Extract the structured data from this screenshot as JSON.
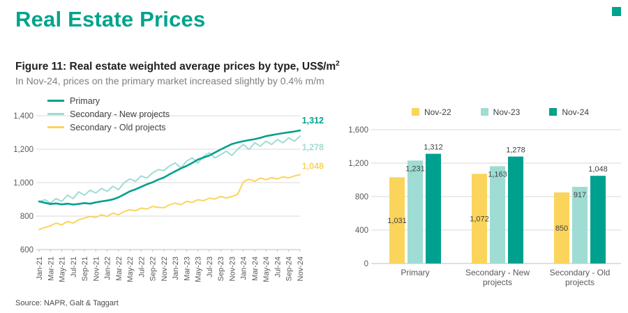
{
  "page": {
    "title": "Real Estate Prices",
    "figure_label": "Figure 11: Real estate weighted average prices by type, US$/m",
    "figure_sup": "2",
    "subtitle": "In Nov-24, prices on the primary market increased slightly by 0.4% m/m",
    "source": "Source: NAPR, Galt & Taggart"
  },
  "colors": {
    "brand_teal": "#00A38D",
    "primary_line": "#00A08F",
    "secondary_new": "#9FDCD3",
    "secondary_old": "#FBD45C",
    "axis_text": "#595959",
    "grid_line": "#D9D9D9",
    "axis_line": "#BFBFBF",
    "label_text": "#404040"
  },
  "chart_data": [
    {
      "type": "line",
      "title": "",
      "ylim": [
        600,
        1400
      ],
      "yticks": [
        600,
        800,
        1000,
        1200,
        1400
      ],
      "grid": true,
      "legend_position": "top-left",
      "x_tick_every": 2,
      "x": [
        "Jan-21",
        "Feb-21",
        "Mar-21",
        "Apr-21",
        "May-21",
        "Jun-21",
        "Jul-21",
        "Aug-21",
        "Sep-21",
        "Oct-21",
        "Nov-21",
        "Dec-21",
        "Jan-22",
        "Feb-22",
        "Mar-22",
        "Apr-22",
        "May-22",
        "Jun-22",
        "Jul-22",
        "Aug-22",
        "Sep-22",
        "Oct-22",
        "Nov-22",
        "Dec-22",
        "Jan-23",
        "Feb-23",
        "Mar-23",
        "Apr-23",
        "May-23",
        "Jun-23",
        "Jul-23",
        "Aug-23",
        "Sep-23",
        "Oct-23",
        "Nov-23",
        "Dec-23",
        "Jan-24",
        "Feb-24",
        "Mar-24",
        "Apr-24",
        "May-24",
        "Jun-24",
        "Jul-24",
        "Aug-24",
        "Sep-24",
        "Oct-24",
        "Nov-24"
      ],
      "series": [
        {
          "name": "Primary",
          "color": "#00A08F",
          "end_label": "1,312",
          "values": [
            888,
            880,
            872,
            876,
            870,
            874,
            869,
            873,
            878,
            874,
            882,
            888,
            893,
            900,
            912,
            930,
            948,
            960,
            975,
            990,
            1002,
            1018,
            1031,
            1050,
            1068,
            1085,
            1100,
            1118,
            1138,
            1150,
            1162,
            1180,
            1198,
            1214,
            1231,
            1240,
            1248,
            1254,
            1260,
            1268,
            1278,
            1284,
            1290,
            1296,
            1301,
            1306,
            1312
          ]
        },
        {
          "name": "Secondary - New projects",
          "color": "#9FDCD3",
          "end_label": "1,278",
          "values": [
            885,
            898,
            878,
            905,
            888,
            925,
            905,
            945,
            925,
            955,
            938,
            965,
            948,
            978,
            958,
            1000,
            1022,
            1008,
            1040,
            1028,
            1058,
            1078,
            1072,
            1100,
            1118,
            1088,
            1128,
            1148,
            1118,
            1158,
            1178,
            1148,
            1168,
            1188,
            1163,
            1200,
            1228,
            1198,
            1238,
            1218,
            1248,
            1228,
            1258,
            1238,
            1268,
            1248,
            1278
          ]
        },
        {
          "name": "Secondary - Old projects",
          "color": "#FBD45C",
          "end_label": "1,048",
          "values": [
            720,
            732,
            742,
            758,
            748,
            768,
            758,
            778,
            788,
            798,
            792,
            808,
            798,
            818,
            808,
            828,
            838,
            832,
            848,
            842,
            858,
            852,
            850,
            868,
            878,
            868,
            888,
            882,
            898,
            892,
            908,
            902,
            918,
            908,
            917,
            930,
            1005,
            1020,
            1008,
            1028,
            1018,
            1030,
            1022,
            1035,
            1028,
            1040,
            1048
          ]
        }
      ]
    },
    {
      "type": "bar",
      "ylim": [
        0,
        1600
      ],
      "yticks": [
        0,
        400,
        800,
        1200,
        1600
      ],
      "grid": true,
      "legend_position": "top",
      "categories": [
        "Primary",
        "Secondary - New projects",
        "Secondary - Old projects"
      ],
      "category_lines": [
        [
          "Primary"
        ],
        [
          "Secondary - New",
          "projects"
        ],
        [
          "Secondary - Old",
          "projects"
        ]
      ],
      "series": [
        {
          "name": "Nov-22",
          "color": "#FBD45C",
          "values": [
            1031,
            1072,
            850
          ],
          "label_placement": "middle"
        },
        {
          "name": "Nov-23",
          "color": "#9FDCD3",
          "values": [
            1231,
            1163,
            917
          ],
          "label_placement": "inside-top"
        },
        {
          "name": "Nov-24",
          "color": "#00A08F",
          "values": [
            1312,
            1278,
            1048
          ],
          "label_placement": "above"
        }
      ]
    }
  ]
}
